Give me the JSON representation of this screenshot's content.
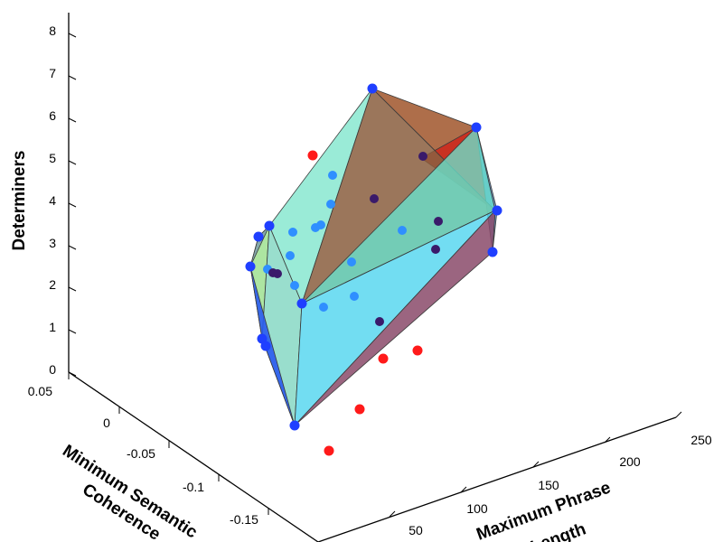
{
  "chart_data": {
    "type": "scatter",
    "variant": "3d-scatter-with-convex-hull",
    "axes": {
      "z": {
        "label": "Determiners",
        "ticks": [
          "0",
          "1",
          "2",
          "3",
          "4",
          "5",
          "6",
          "7",
          "8"
        ],
        "range": [
          0,
          8
        ]
      },
      "y": {
        "label_line1": "Minimum Semantic",
        "label_line2": "Coherence",
        "ticks": [
          "0.05",
          "0",
          "-0.05",
          "-0.1",
          "-0.15"
        ],
        "range": [
          -0.2,
          0.05
        ]
      },
      "x": {
        "label_line1": "Maximum Phrase",
        "label_line2": "Length",
        "ticks": [
          "50",
          "100",
          "150",
          "200",
          "250"
        ],
        "range": [
          0,
          250
        ]
      }
    },
    "grid": false,
    "colors": {
      "hull_vertex": "#1f3fff",
      "interior_point": "#2f8fff",
      "exterior_point": "#ff1a1a",
      "dark_point": "#3a1a6a"
    },
    "series": [
      {
        "role": "hull_vertices",
        "approx_count": 14
      },
      {
        "role": "interior_points",
        "approx_count": 28
      },
      {
        "role": "exterior_points",
        "approx_count": 5
      }
    ]
  }
}
